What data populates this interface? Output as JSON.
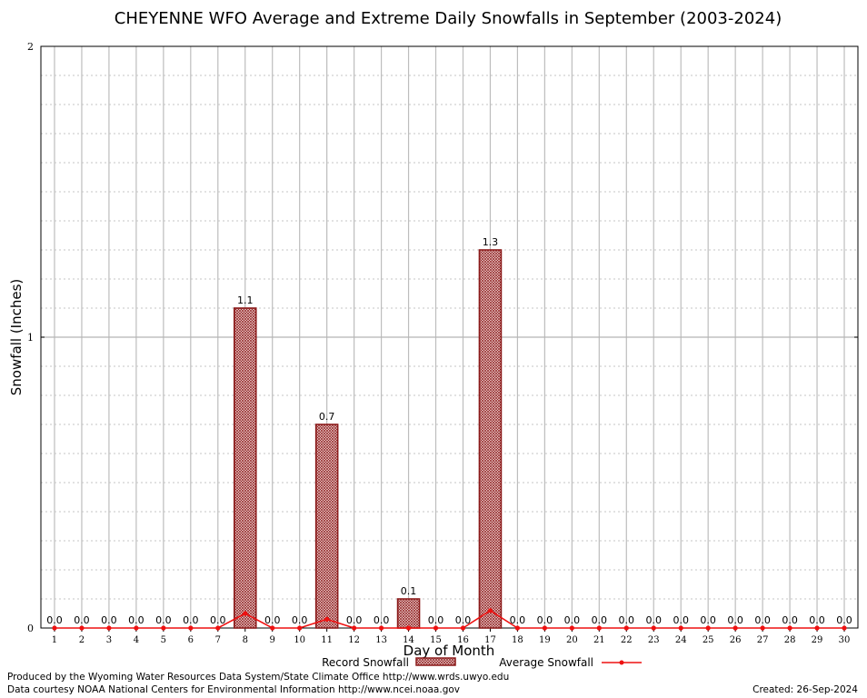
{
  "chart_data": {
    "type": "bar",
    "title": "CHEYENNE WFO Average and Extreme Daily Snowfalls in September (2003-2024)",
    "xlabel": "Day of Month",
    "ylabel": "Snowfall (Inches)",
    "ylim": [
      0,
      2
    ],
    "yticks": [
      "0",
      "1",
      "2"
    ],
    "grid": true,
    "legend_position": "bottom",
    "categories": [
      "1",
      "2",
      "3",
      "4",
      "5",
      "6",
      "7",
      "8",
      "9",
      "10",
      "11",
      "12",
      "13",
      "14",
      "15",
      "16",
      "17",
      "18",
      "19",
      "20",
      "21",
      "22",
      "23",
      "24",
      "25",
      "26",
      "27",
      "28",
      "29",
      "30"
    ],
    "series": [
      {
        "name": "Record Snowfall",
        "kind": "bar",
        "color": "#8b0000",
        "values": [
          0,
          0,
          0,
          0,
          0,
          0,
          0,
          1.1,
          0,
          0,
          0.7,
          0,
          0,
          0.1,
          0,
          0,
          1.3,
          0,
          0,
          0,
          0,
          0,
          0,
          0,
          0,
          0,
          0,
          0,
          0,
          0
        ],
        "labels": [
          "0.0",
          "0.0",
          "0.0",
          "0.0",
          "0.0",
          "0.0",
          "0.0",
          "1.1",
          "0.0",
          "0.0",
          "0.7",
          "0.0",
          "0.0",
          "0.1",
          "0.0",
          "0.0",
          "1.3",
          "0.0",
          "0.0",
          "0.0",
          "0.0",
          "0.0",
          "0.0",
          "0.0",
          "0.0",
          "0.0",
          "0.0",
          "0.0",
          "0.0",
          "0.0"
        ]
      },
      {
        "name": "Average Snowfall",
        "kind": "line",
        "color": "#ee1111",
        "values": [
          0,
          0,
          0,
          0,
          0,
          0,
          0,
          0.05,
          0,
          0,
          0.03,
          0,
          0,
          0,
          0,
          0,
          0.06,
          0,
          0,
          0,
          0,
          0,
          0,
          0,
          0,
          0,
          0,
          0,
          0,
          0
        ]
      }
    ]
  },
  "footer": {
    "produced_by": "Produced by the Wyoming Water Resources Data System/State Climate Office http://www.wrds.uwyo.edu",
    "data_courtesy": "Data courtesy NOAA National Centers for Environmental Information http://www.ncei.noaa.gov",
    "created": "Created:  26-Sep-2024"
  }
}
